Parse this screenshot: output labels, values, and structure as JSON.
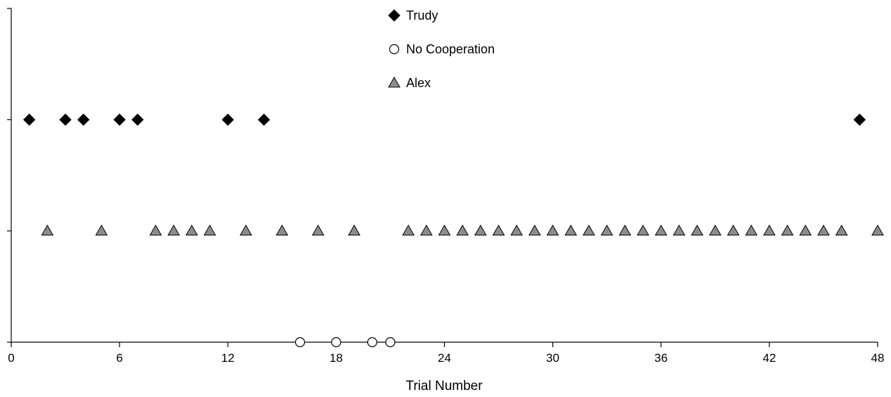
{
  "chart_data": {
    "type": "scatter",
    "title": "",
    "xlabel": "Trial  Number",
    "ylabel": "",
    "xlim": [
      0,
      48
    ],
    "ylim": [
      0,
      3
    ],
    "x_ticks": [
      "0",
      "6",
      "12",
      "18",
      "24",
      "30",
      "36",
      "42",
      "48"
    ],
    "y_tick_count": 4,
    "y_tick_labels_shown": false,
    "grid": false,
    "legend_position": "top-center",
    "series": [
      {
        "name": "Trudy",
        "marker": "diamond",
        "color": "#000000",
        "y": 2,
        "x": [
          1,
          3,
          4,
          6,
          7,
          12,
          14,
          47
        ]
      },
      {
        "name": "No Cooperation",
        "marker": "circle-open",
        "color": "#ffffff",
        "y": 0,
        "x": [
          16,
          18,
          20,
          21
        ]
      },
      {
        "name": "Alex",
        "marker": "triangle",
        "color": "#8c8c8c",
        "y": 1,
        "x": [
          2,
          5,
          8,
          9,
          10,
          11,
          13,
          15,
          17,
          19,
          22,
          23,
          24,
          25,
          26,
          27,
          28,
          29,
          30,
          31,
          32,
          33,
          34,
          35,
          36,
          37,
          38,
          39,
          40,
          41,
          42,
          43,
          44,
          45,
          46,
          48
        ]
      }
    ]
  }
}
